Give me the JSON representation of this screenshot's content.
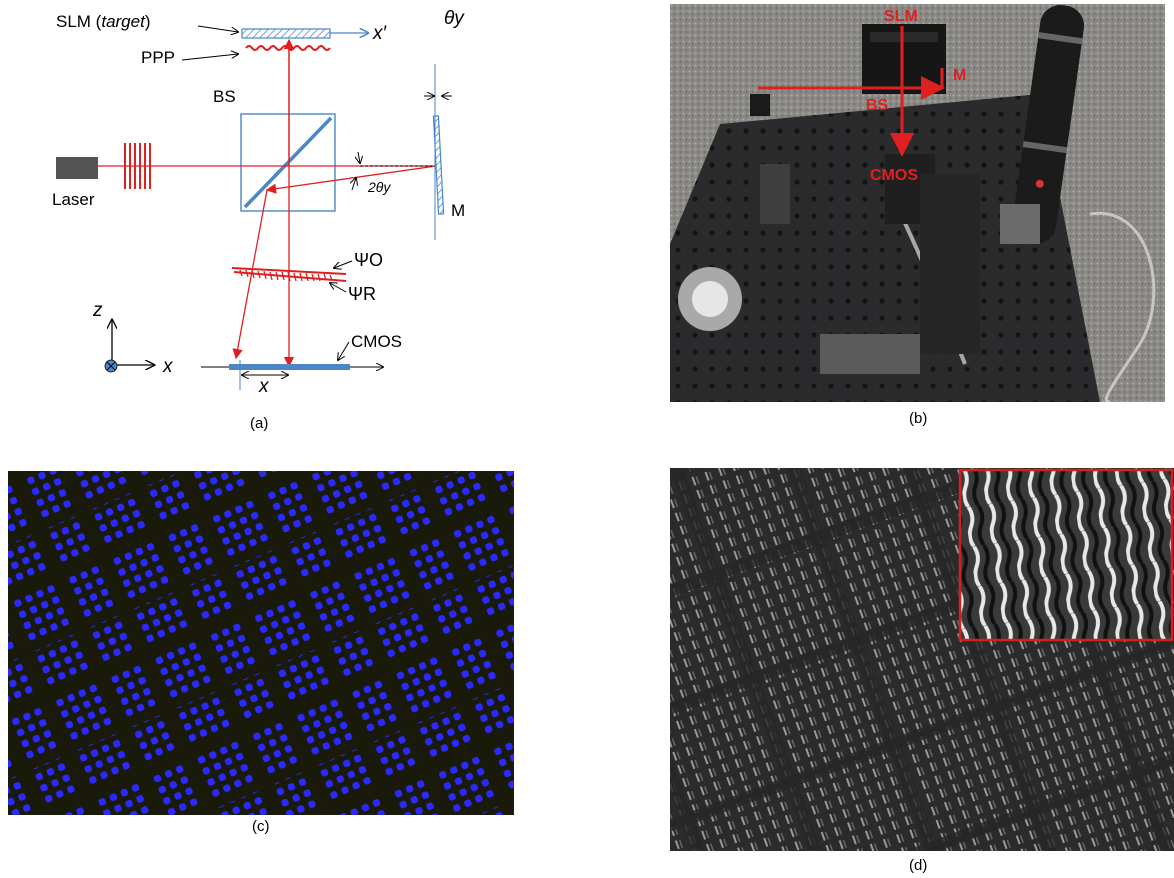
{
  "panel_a": {
    "slm_label": "SLM (",
    "slm_label_italic": "target",
    "slm_label_end": ")",
    "ppp_label": "PPP",
    "bs_label": "BS",
    "laser_label": "Laser",
    "mirror_label": "M",
    "theta_y": "θy",
    "two_theta_y": "2θy",
    "x_prime": "x′",
    "psi_o": "ΨO",
    "psi_r": "ΨR",
    "cmos_label": "CMOS",
    "axis_z": "z",
    "axis_x": "x",
    "x_measure": "x",
    "caption": "(a)"
  },
  "panel_b": {
    "labels": {
      "slm": "SLM",
      "m": "M",
      "bs": "BS",
      "cmos": "CMOS"
    },
    "caption": "(b)"
  },
  "panel_c": {
    "caption": "(c)",
    "dot_color": "#2a2aff",
    "bg_color": "#1a1a0a"
  },
  "panel_d": {
    "caption": "(d)",
    "inset_border_color": "#d42020"
  },
  "colors": {
    "beam": "#e02020",
    "optic": "#4a86c8",
    "laser_body": "#555555"
  }
}
